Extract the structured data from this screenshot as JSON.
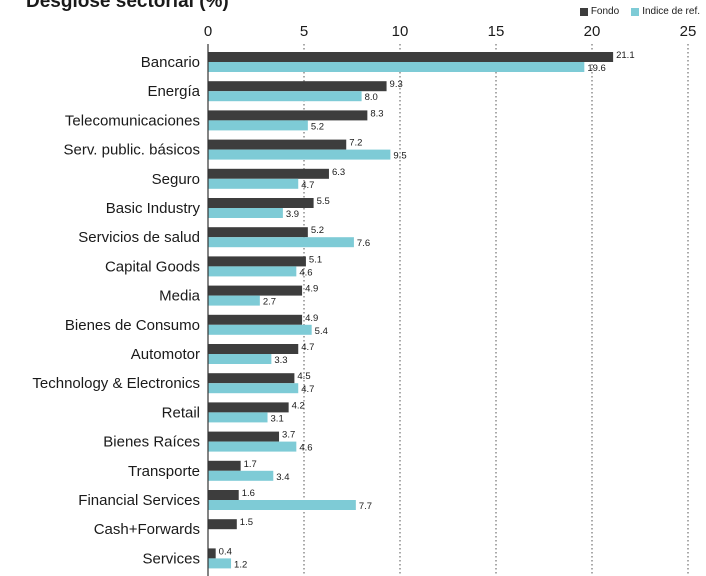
{
  "colors": {
    "fondo": "#3d3d3d",
    "indice": "#7ecbd6",
    "grid": "#555555",
    "axis": "#333333"
  },
  "chart_data": {
    "type": "bar",
    "orientation": "horizontal",
    "title": "Desglose sectorial (%)",
    "xlim": [
      0,
      25
    ],
    "xticks": [
      "0",
      "5",
      "10",
      "15",
      "20",
      "25"
    ],
    "grid": "vertical dotted",
    "legend_position": "top-right",
    "categories": [
      "Bancario",
      "Energía",
      "Telecomunicaciones",
      "Serv. public. básicos",
      "Seguro",
      "Basic Industry",
      "Servicios de salud",
      "Capital Goods",
      "Media",
      "Bienes de Consumo",
      "Automotor",
      "Technology & Electronics",
      "Retail",
      "Bienes Raíces",
      "Transporte",
      "Financial Services",
      "Cash+Forwards",
      "Services"
    ],
    "series": [
      {
        "name": "Fondo",
        "values": [
          21.1,
          9.3,
          8.3,
          7.2,
          6.3,
          5.5,
          5.2,
          5.1,
          4.9,
          4.9,
          4.7,
          4.5,
          4.2,
          3.7,
          1.7,
          1.6,
          1.5,
          0.4
        ],
        "labels": [
          "21.1",
          "9.3",
          "8.3",
          "7.2",
          "6.3",
          "5.5",
          "5.2",
          "5.1",
          "4.9",
          "4.9",
          "4.7",
          "4.5",
          "4.2",
          "3.7",
          "1.7",
          "1.6",
          "1.5",
          "0.4"
        ]
      },
      {
        "name": "Indice de ref.",
        "values": [
          19.6,
          8.0,
          5.2,
          9.5,
          4.7,
          3.9,
          7.6,
          4.6,
          2.7,
          5.4,
          3.3,
          4.7,
          3.1,
          4.6,
          3.4,
          7.7,
          null,
          1.2
        ],
        "labels": [
          "19.6",
          "8.0",
          "5.2",
          "9.5",
          "4.7",
          "3.9",
          "7.6",
          "4.6",
          "2.7",
          "5.4",
          "3.3",
          "4.7",
          "3.1",
          "4.6",
          "3.4",
          "7.7",
          "",
          "1.2"
        ]
      }
    ]
  }
}
